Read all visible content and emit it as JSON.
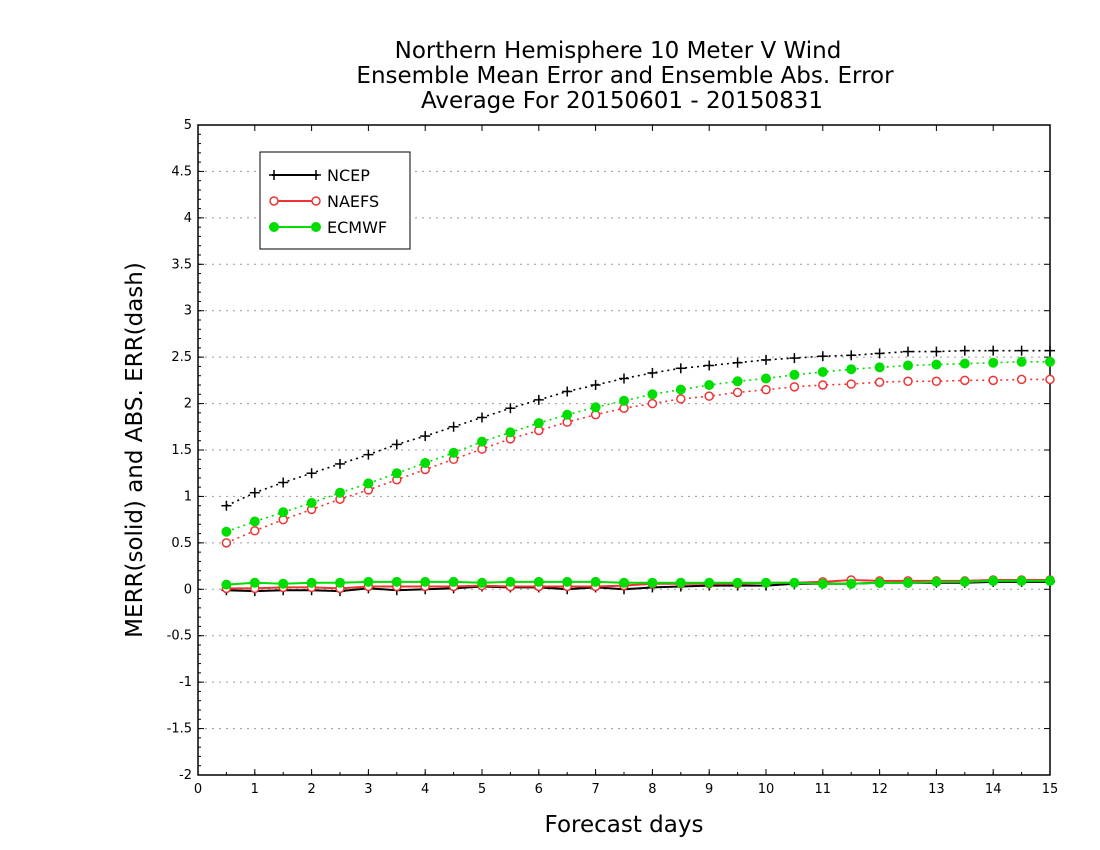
{
  "chart_data": {
    "type": "line",
    "title_lines": [
      "Northern Hemisphere 10 Meter V Wind",
      "Ensemble Mean Error and Ensemble Abs. Error",
      "Average For 20150601 - 20150831"
    ],
    "xlabel": "Forecast days",
    "ylabel": "MERR(solid) and ABS. ERR(dash)",
    "xlim": [
      0,
      15
    ],
    "ylim": [
      -2,
      5
    ],
    "x_ticks": [
      "0",
      "1",
      "2",
      "3",
      "4",
      "5",
      "6",
      "7",
      "8",
      "9",
      "10",
      "11",
      "12",
      "13",
      "14",
      "15"
    ],
    "y_ticks": [
      "5",
      "4.5",
      "4",
      "3.5",
      "3",
      "2.5",
      "2",
      "1.5",
      "1",
      "0.5",
      "0",
      "-0.5",
      "-1",
      "-1.5",
      "-2"
    ],
    "y_tick_values": [
      5,
      4.5,
      4,
      3.5,
      3,
      2.5,
      2,
      1.5,
      1,
      0.5,
      0,
      -0.5,
      -1,
      -1.5,
      -2
    ],
    "grid": "horizontal dotted",
    "legend_position": "top-left",
    "x": [
      0.5,
      1,
      1.5,
      2,
      2.5,
      3,
      3.5,
      4,
      4.5,
      5,
      5.5,
      6,
      6.5,
      7,
      7.5,
      8,
      8.5,
      9,
      9.5,
      10,
      10.5,
      11,
      11.5,
      12,
      12.5,
      13,
      13.5,
      14,
      14.5,
      15
    ],
    "series": [
      {
        "name": "NCEP",
        "color": "#000000",
        "marker": "plus",
        "abs_err": [
          0.9,
          1.04,
          1.15,
          1.25,
          1.35,
          1.45,
          1.56,
          1.65,
          1.75,
          1.85,
          1.95,
          2.04,
          2.13,
          2.2,
          2.27,
          2.33,
          2.38,
          2.41,
          2.44,
          2.47,
          2.49,
          2.51,
          2.52,
          2.54,
          2.56,
          2.56,
          2.57,
          2.57,
          2.57,
          2.57
        ],
        "mean_err": [
          -0.01,
          -0.02,
          -0.01,
          -0.01,
          -0.02,
          0.01,
          -0.01,
          0.0,
          0.01,
          0.03,
          0.02,
          0.02,
          0.0,
          0.02,
          0.0,
          0.02,
          0.03,
          0.04,
          0.04,
          0.04,
          0.06,
          0.06,
          0.06,
          0.07,
          0.07,
          0.07,
          0.07,
          0.08,
          0.08,
          0.08
        ]
      },
      {
        "name": "NAEFS",
        "color": "#ee3333",
        "marker": "open-circle",
        "abs_err": [
          0.5,
          0.63,
          0.75,
          0.86,
          0.97,
          1.07,
          1.18,
          1.29,
          1.4,
          1.51,
          1.62,
          1.71,
          1.8,
          1.88,
          1.95,
          2.0,
          2.05,
          2.08,
          2.12,
          2.15,
          2.18,
          2.2,
          2.21,
          2.23,
          2.24,
          2.24,
          2.25,
          2.25,
          2.26,
          2.26
        ],
        "mean_err": [
          0.01,
          0.01,
          0.02,
          0.02,
          0.01,
          0.03,
          0.03,
          0.03,
          0.03,
          0.04,
          0.03,
          0.03,
          0.03,
          0.03,
          0.04,
          0.06,
          0.06,
          0.06,
          0.06,
          0.07,
          0.07,
          0.08,
          0.1,
          0.09,
          0.09,
          0.09,
          0.09,
          0.1,
          0.1,
          0.1
        ]
      },
      {
        "name": "ECMWF",
        "color": "#00dd00",
        "marker": "filled-circle",
        "abs_err": [
          0.62,
          0.73,
          0.83,
          0.93,
          1.04,
          1.14,
          1.25,
          1.36,
          1.47,
          1.59,
          1.69,
          1.79,
          1.88,
          1.96,
          2.03,
          2.1,
          2.15,
          2.2,
          2.24,
          2.27,
          2.31,
          2.34,
          2.37,
          2.39,
          2.41,
          2.42,
          2.43,
          2.44,
          2.45,
          2.45
        ],
        "mean_err": [
          0.05,
          0.07,
          0.06,
          0.07,
          0.07,
          0.08,
          0.08,
          0.08,
          0.08,
          0.07,
          0.08,
          0.08,
          0.08,
          0.08,
          0.07,
          0.07,
          0.07,
          0.07,
          0.07,
          0.07,
          0.07,
          0.06,
          0.06,
          0.07,
          0.07,
          0.08,
          0.08,
          0.09,
          0.09,
          0.09
        ]
      }
    ]
  }
}
